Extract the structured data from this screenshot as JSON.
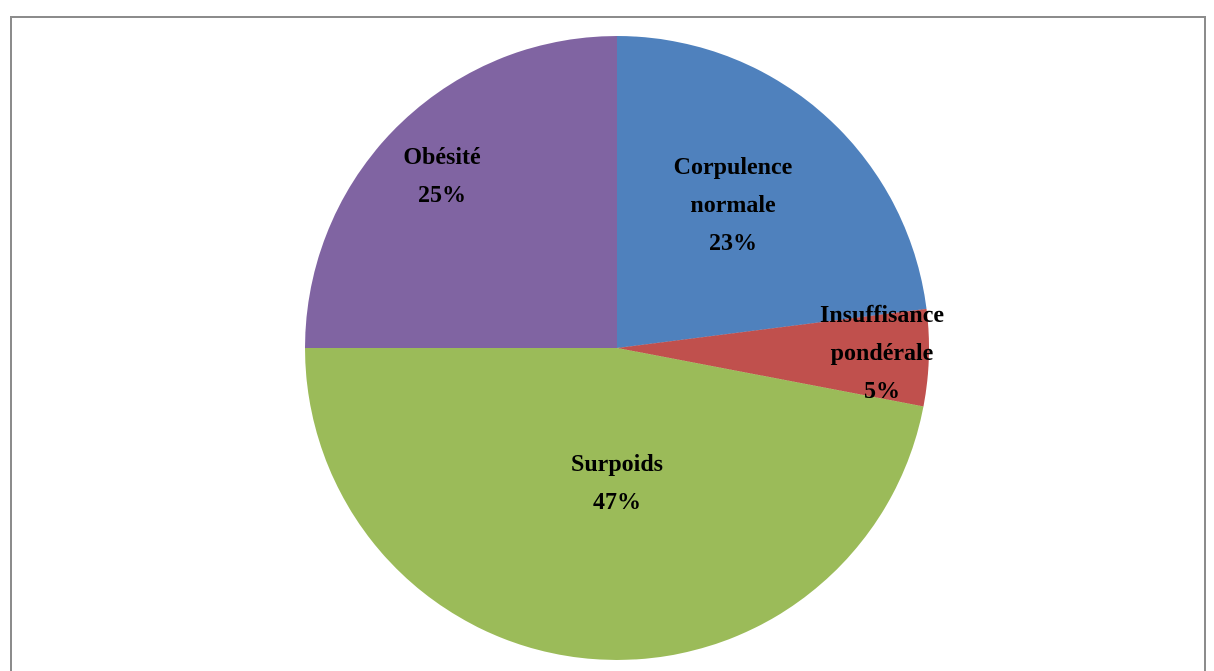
{
  "chart_data": {
    "type": "pie",
    "categories": [
      "Corpulence normale",
      "Insuffisance pondérale",
      "Surpoids",
      "Obésité"
    ],
    "values": [
      23,
      5,
      47,
      25
    ],
    "value_labels": [
      "23%",
      "5%",
      "47%",
      "25%"
    ],
    "colors": [
      "#4f81bd",
      "#c0504d",
      "#9bbb59",
      "#8064a2"
    ]
  }
}
